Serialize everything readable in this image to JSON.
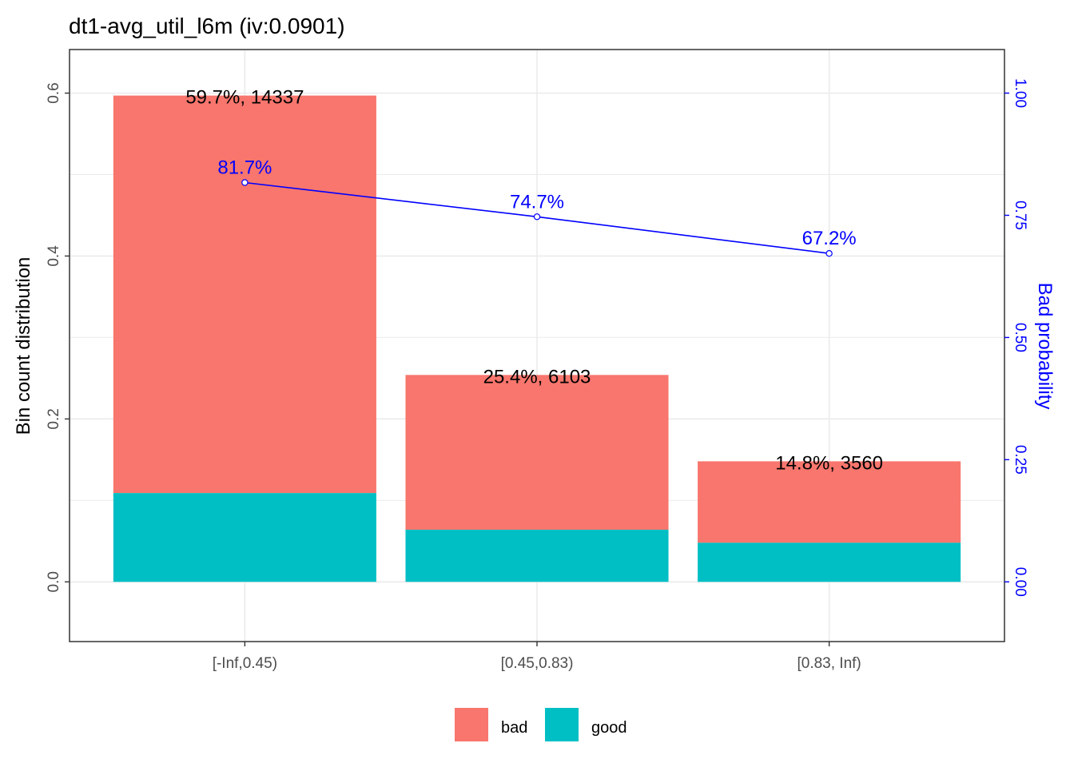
{
  "chart_data": {
    "type": "bar",
    "title": "dt1-avg_util_l6m  (iv:0.0901)",
    "xlabel": "",
    "ylabel": "Bin count distribution",
    "y2label": "Bad probability",
    "categories": [
      "[-Inf,0.45)",
      "[0.45,0.83)",
      "[0.83, Inf)"
    ],
    "series": [
      {
        "name": "good",
        "values": [
          0.109,
          0.064,
          0.048
        ]
      },
      {
        "name": "bad",
        "values": [
          0.488,
          0.19,
          0.1
        ]
      }
    ],
    "totals": [
      0.597,
      0.254,
      0.148
    ],
    "bar_labels": [
      "59.7%, 14337",
      "25.4%, 6103",
      "14.8%, 3560"
    ],
    "bad_probability": [
      0.817,
      0.747,
      0.672
    ],
    "bad_probability_labels": [
      "81.7%",
      "74.7%",
      "67.2%"
    ],
    "ylim": [
      -0.0733,
      0.6535
    ],
    "y_ticks": [
      0.0,
      0.2,
      0.4,
      0.6
    ],
    "y_tick_labels": [
      "0.0",
      "0.2",
      "0.4",
      "0.6"
    ],
    "y2_ticks": [
      0.0,
      0.25,
      0.5,
      0.75,
      1.0
    ],
    "y2_tick_labels": [
      "0.00",
      "0.25",
      "0.50",
      "0.75",
      "1.00"
    ],
    "legend": {
      "position": "bottom",
      "entries": [
        "bad",
        "good"
      ]
    },
    "grid": true,
    "colors": {
      "bad": "#F8766D",
      "good": "#00BFC4",
      "line": "#0000FF",
      "grid": "#EBEBEB",
      "panel_border": "#333333"
    }
  }
}
